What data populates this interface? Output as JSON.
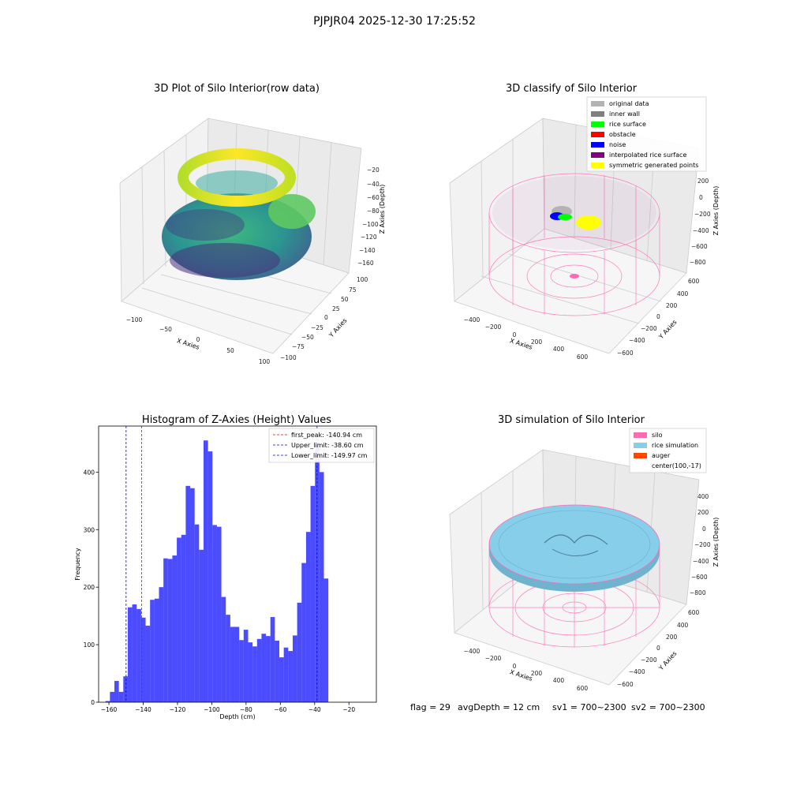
{
  "figure": {
    "suptitle": "PJPJR04 2025-12-30 17:25:52",
    "footer": {
      "flag": "flag = 29",
      "avg_depth": "avgDepth = 12 cm",
      "sv1": "sv1 = 700~2300",
      "sv2": "sv2 = 700~2300"
    }
  },
  "panels": {
    "raw": {
      "title": "3D Plot of Silo Interior(row data)",
      "xlabel": "X Axies",
      "ylabel": "Y Axies",
      "zlabel": "Z Axies (Depth)",
      "xticks": [
        "−100",
        "−50",
        "0",
        "50",
        "100"
      ],
      "yticks": [
        "100",
        "75",
        "50",
        "25",
        "0",
        "−25",
        "−50",
        "−75",
        "−100"
      ],
      "zticks": [
        "−20",
        "−40",
        "−60",
        "−80",
        "−100",
        "−120",
        "−140",
        "−160"
      ]
    },
    "classify": {
      "title": "3D classify of Silo Interior",
      "xlabel": "X Axies",
      "ylabel": "Y Axies",
      "zlabel": "Z Axies (Depth)",
      "xticks": [
        "−400",
        "−200",
        "0",
        "200",
        "400",
        "600"
      ],
      "yticks": [
        "600",
        "400",
        "200",
        "0",
        "−200",
        "−400",
        "−600"
      ],
      "zticks": [
        "200",
        "0",
        "−200",
        "−400",
        "−600",
        "−800"
      ],
      "legend": [
        {
          "label": "original data",
          "color": "#b3b3b3"
        },
        {
          "label": "inner wall",
          "color": "#808080"
        },
        {
          "label": "rice surface",
          "color": "#00ff00"
        },
        {
          "label": "obstacle",
          "color": "#ff0000"
        },
        {
          "label": "noise",
          "color": "#0000ff"
        },
        {
          "label": "interpolated rice surface",
          "color": "#800080"
        },
        {
          "label": "symmetric generated points",
          "color": "#ffff00"
        }
      ]
    },
    "simulation": {
      "title": "3D simulation of Silo Interior",
      "xlabel": "X Axies",
      "ylabel": "Y Axies",
      "zlabel": "Z Axies (Depth)",
      "xticks": [
        "−400",
        "−200",
        "0",
        "200",
        "400",
        "600"
      ],
      "yticks": [
        "600",
        "400",
        "200",
        "0",
        "−200",
        "−400",
        "−600"
      ],
      "zticks": [
        "400",
        "200",
        "0",
        "−200",
        "−400",
        "−600",
        "−800"
      ],
      "legend": [
        {
          "label": "silo",
          "color": "#ff69b4"
        },
        {
          "label": "rice simulation",
          "color": "#87ceeb"
        },
        {
          "label": "auger",
          "color": "#ff4500"
        },
        {
          "label": "center(100,-17)",
          "color": ""
        }
      ]
    }
  },
  "chart_data": {
    "type": "bar",
    "title": "Histogram of Z-Axies (Height) Values",
    "xlabel": "Depth (cm)",
    "ylabel": "Frequency",
    "bar_color": "#0000ff",
    "bin_start": -162,
    "bin_width": 2.6,
    "values": [
      2,
      18,
      37,
      18,
      45,
      165,
      170,
      162,
      147,
      133,
      178,
      180,
      200,
      250,
      249,
      255,
      286,
      291,
      376,
      372,
      309,
      265,
      455,
      436,
      308,
      305,
      183,
      152,
      131,
      131,
      108,
      126,
      104,
      97,
      110,
      119,
      115,
      148,
      107,
      78,
      95,
      89,
      116,
      173,
      242,
      296,
      376,
      452,
      400,
      215
    ],
    "xlim": [
      -166,
      -4
    ],
    "ylim": [
      0,
      480
    ],
    "xticks": [
      -160,
      -140,
      -120,
      -100,
      -80,
      -60,
      -40,
      -20
    ],
    "yticks": [
      0,
      100,
      200,
      300,
      400
    ],
    "xtick_labels": [
      "−160",
      "−140",
      "−120",
      "−100",
      "−80",
      "−60",
      "−40",
      "−20"
    ],
    "ytick_labels": [
      "0",
      "100",
      "200",
      "300",
      "400"
    ],
    "vlines": [
      {
        "x": -140.94,
        "color": "#ff0000",
        "label": "first_peak: -140.94 cm"
      },
      {
        "x": -38.6,
        "color": "#0000ff",
        "label": "Upper_limit: -38.60 cm"
      },
      {
        "x": -149.97,
        "color": "#0000ff",
        "label": "Lower_limit: -149.97 cm"
      }
    ],
    "legend_position": "top-right"
  }
}
